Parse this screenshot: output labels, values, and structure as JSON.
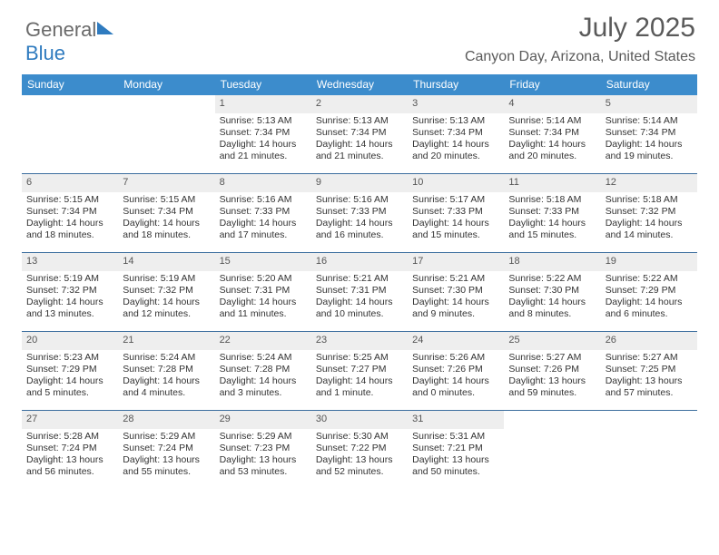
{
  "logo": {
    "text1": "General",
    "text2": "Blue"
  },
  "title": "July 2025",
  "subtitle": "Canyon Day, Arizona, United States",
  "style": {
    "header_bg": "#3c8ccc",
    "header_text": "#ffffff",
    "row_divider": "#3c6e9e",
    "daynum_bg": "#eeeeee",
    "body_text": "#333333",
    "title_color": "#5a5a5a",
    "font_size_body": 10.5,
    "font_size_header": 12,
    "font_size_title": 30,
    "font_size_subtitle": 16
  },
  "columns": [
    "Sunday",
    "Monday",
    "Tuesday",
    "Wednesday",
    "Thursday",
    "Friday",
    "Saturday"
  ],
  "weeks": [
    [
      null,
      null,
      {
        "n": "1",
        "sr": "Sunrise: 5:13 AM",
        "ss": "Sunset: 7:34 PM",
        "dl": "Daylight: 14 hours and 21 minutes."
      },
      {
        "n": "2",
        "sr": "Sunrise: 5:13 AM",
        "ss": "Sunset: 7:34 PM",
        "dl": "Daylight: 14 hours and 21 minutes."
      },
      {
        "n": "3",
        "sr": "Sunrise: 5:13 AM",
        "ss": "Sunset: 7:34 PM",
        "dl": "Daylight: 14 hours and 20 minutes."
      },
      {
        "n": "4",
        "sr": "Sunrise: 5:14 AM",
        "ss": "Sunset: 7:34 PM",
        "dl": "Daylight: 14 hours and 20 minutes."
      },
      {
        "n": "5",
        "sr": "Sunrise: 5:14 AM",
        "ss": "Sunset: 7:34 PM",
        "dl": "Daylight: 14 hours and 19 minutes."
      }
    ],
    [
      {
        "n": "6",
        "sr": "Sunrise: 5:15 AM",
        "ss": "Sunset: 7:34 PM",
        "dl": "Daylight: 14 hours and 18 minutes."
      },
      {
        "n": "7",
        "sr": "Sunrise: 5:15 AM",
        "ss": "Sunset: 7:34 PM",
        "dl": "Daylight: 14 hours and 18 minutes."
      },
      {
        "n": "8",
        "sr": "Sunrise: 5:16 AM",
        "ss": "Sunset: 7:33 PM",
        "dl": "Daylight: 14 hours and 17 minutes."
      },
      {
        "n": "9",
        "sr": "Sunrise: 5:16 AM",
        "ss": "Sunset: 7:33 PM",
        "dl": "Daylight: 14 hours and 16 minutes."
      },
      {
        "n": "10",
        "sr": "Sunrise: 5:17 AM",
        "ss": "Sunset: 7:33 PM",
        "dl": "Daylight: 14 hours and 15 minutes."
      },
      {
        "n": "11",
        "sr": "Sunrise: 5:18 AM",
        "ss": "Sunset: 7:33 PM",
        "dl": "Daylight: 14 hours and 15 minutes."
      },
      {
        "n": "12",
        "sr": "Sunrise: 5:18 AM",
        "ss": "Sunset: 7:32 PM",
        "dl": "Daylight: 14 hours and 14 minutes."
      }
    ],
    [
      {
        "n": "13",
        "sr": "Sunrise: 5:19 AM",
        "ss": "Sunset: 7:32 PM",
        "dl": "Daylight: 14 hours and 13 minutes."
      },
      {
        "n": "14",
        "sr": "Sunrise: 5:19 AM",
        "ss": "Sunset: 7:32 PM",
        "dl": "Daylight: 14 hours and 12 minutes."
      },
      {
        "n": "15",
        "sr": "Sunrise: 5:20 AM",
        "ss": "Sunset: 7:31 PM",
        "dl": "Daylight: 14 hours and 11 minutes."
      },
      {
        "n": "16",
        "sr": "Sunrise: 5:21 AM",
        "ss": "Sunset: 7:31 PM",
        "dl": "Daylight: 14 hours and 10 minutes."
      },
      {
        "n": "17",
        "sr": "Sunrise: 5:21 AM",
        "ss": "Sunset: 7:30 PM",
        "dl": "Daylight: 14 hours and 9 minutes."
      },
      {
        "n": "18",
        "sr": "Sunrise: 5:22 AM",
        "ss": "Sunset: 7:30 PM",
        "dl": "Daylight: 14 hours and 8 minutes."
      },
      {
        "n": "19",
        "sr": "Sunrise: 5:22 AM",
        "ss": "Sunset: 7:29 PM",
        "dl": "Daylight: 14 hours and 6 minutes."
      }
    ],
    [
      {
        "n": "20",
        "sr": "Sunrise: 5:23 AM",
        "ss": "Sunset: 7:29 PM",
        "dl": "Daylight: 14 hours and 5 minutes."
      },
      {
        "n": "21",
        "sr": "Sunrise: 5:24 AM",
        "ss": "Sunset: 7:28 PM",
        "dl": "Daylight: 14 hours and 4 minutes."
      },
      {
        "n": "22",
        "sr": "Sunrise: 5:24 AM",
        "ss": "Sunset: 7:28 PM",
        "dl": "Daylight: 14 hours and 3 minutes."
      },
      {
        "n": "23",
        "sr": "Sunrise: 5:25 AM",
        "ss": "Sunset: 7:27 PM",
        "dl": "Daylight: 14 hours and 1 minute."
      },
      {
        "n": "24",
        "sr": "Sunrise: 5:26 AM",
        "ss": "Sunset: 7:26 PM",
        "dl": "Daylight: 14 hours and 0 minutes."
      },
      {
        "n": "25",
        "sr": "Sunrise: 5:27 AM",
        "ss": "Sunset: 7:26 PM",
        "dl": "Daylight: 13 hours and 59 minutes."
      },
      {
        "n": "26",
        "sr": "Sunrise: 5:27 AM",
        "ss": "Sunset: 7:25 PM",
        "dl": "Daylight: 13 hours and 57 minutes."
      }
    ],
    [
      {
        "n": "27",
        "sr": "Sunrise: 5:28 AM",
        "ss": "Sunset: 7:24 PM",
        "dl": "Daylight: 13 hours and 56 minutes."
      },
      {
        "n": "28",
        "sr": "Sunrise: 5:29 AM",
        "ss": "Sunset: 7:24 PM",
        "dl": "Daylight: 13 hours and 55 minutes."
      },
      {
        "n": "29",
        "sr": "Sunrise: 5:29 AM",
        "ss": "Sunset: 7:23 PM",
        "dl": "Daylight: 13 hours and 53 minutes."
      },
      {
        "n": "30",
        "sr": "Sunrise: 5:30 AM",
        "ss": "Sunset: 7:22 PM",
        "dl": "Daylight: 13 hours and 52 minutes."
      },
      {
        "n": "31",
        "sr": "Sunrise: 5:31 AM",
        "ss": "Sunset: 7:21 PM",
        "dl": "Daylight: 13 hours and 50 minutes."
      },
      null,
      null
    ]
  ]
}
